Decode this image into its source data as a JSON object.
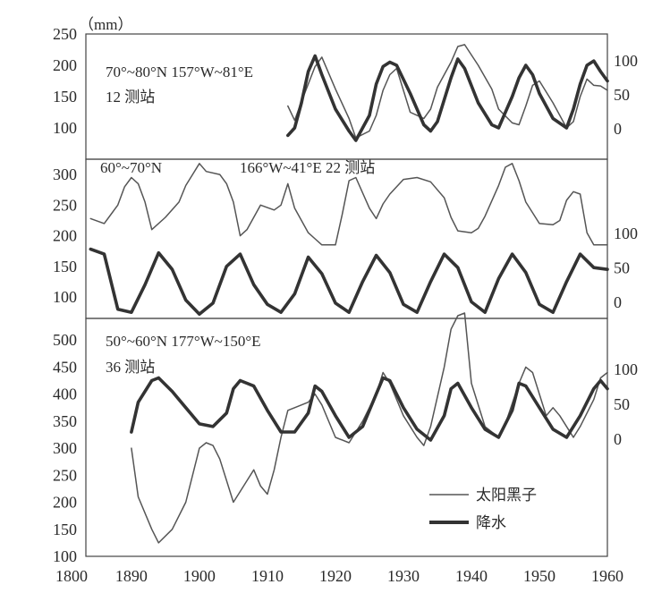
{
  "chart_data": {
    "type": "line",
    "unit_label": "（mm）",
    "x_ticks": [
      "1800",
      "1890",
      "1900",
      "1910",
      "1920",
      "1930",
      "1940",
      "1950",
      "1960"
    ],
    "legend": {
      "sunspot": "太阳黑子",
      "precip": "降水"
    },
    "panels": [
      {
        "title_line1": "70°~80°N 157°W~81°E",
        "title_line2": "12 测站",
        "left_ticks": [
          "250",
          "200",
          "150",
          "100"
        ],
        "left_range": [
          50,
          250
        ],
        "right_ticks": [
          "100",
          "50",
          "0"
        ],
        "right_range": [
          0,
          100
        ],
        "series": [
          {
            "key": "sunspot",
            "x": [
              1913,
              1914,
              1915,
              1916,
              1917,
              1918,
              1920,
              1922,
              1923,
              1925,
              1926,
              1927,
              1928,
              1929,
              1931,
              1933,
              1934,
              1935,
              1937,
              1938,
              1939,
              1941,
              1943,
              1944,
              1946,
              1947,
              1948,
              1949,
              1950,
              1952,
              1954,
              1955,
              1956,
              1957,
              1958,
              1959,
              1960
            ],
            "y": [
              135,
              112,
              142,
              170,
              198,
              213,
              162,
              115,
              84,
              95,
              120,
              160,
              185,
              195,
              125,
              115,
              130,
              165,
              205,
              230,
              233,
              200,
              162,
              130,
              108,
              105,
              135,
              168,
              175,
              140,
              100,
              110,
              150,
              178,
              168,
              167,
              160
            ]
          },
          {
            "key": "precip",
            "x": [
              1913,
              1914,
              1915,
              1916,
              1917,
              1918,
              1920,
              1922,
              1923,
              1925,
              1926,
              1927,
              1928,
              1929,
              1931,
              1933,
              1934,
              1935,
              1937,
              1938,
              1939,
              1941,
              1943,
              1944,
              1946,
              1947,
              1948,
              1949,
              1950,
              1952,
              1954,
              1955,
              1956,
              1957,
              1958,
              1959,
              1960
            ],
            "y": [
              88,
              100,
              140,
              190,
              215,
              185,
              130,
              95,
              80,
              120,
              170,
              198,
              205,
              200,
              155,
              105,
              95,
              110,
              180,
              210,
              195,
              140,
              105,
              100,
              150,
              180,
              200,
              185,
              155,
              115,
              100,
              130,
              170,
              200,
              207,
              190,
              175
            ]
          }
        ]
      },
      {
        "title_line1": "60°~70°N",
        "title_line2": "166°W~41°E  22 测站",
        "left_ticks": [
          "300",
          "250",
          "200",
          "150",
          "100"
        ],
        "left_range": [
          65,
          325
        ],
        "right_ticks": [
          "100",
          "50",
          "0"
        ],
        "right_range": [
          0,
          100
        ],
        "series": [
          {
            "key": "sunspot",
            "x": [
              1884,
              1886,
              1888,
              1889,
              1890,
              1891,
              1892,
              1893,
              1895,
              1897,
              1898,
              1899,
              1900,
              1901,
              1903,
              1904,
              1905,
              1906,
              1907,
              1909,
              1911,
              1912,
              1913,
              1914,
              1916,
              1917,
              1918,
              1920,
              1921,
              1922,
              1923,
              1925,
              1926,
              1927,
              1928,
              1930,
              1932,
              1934,
              1936,
              1937,
              1938,
              1940,
              1941,
              1942,
              1944,
              1945,
              1946,
              1947,
              1948,
              1950,
              1952,
              1953,
              1954,
              1955,
              1956,
              1957,
              1958,
              1960
            ],
            "y": [
              228,
              220,
              250,
              280,
              295,
              285,
              255,
              210,
              230,
              255,
              282,
              300,
              318,
              305,
              300,
              285,
              255,
              200,
              210,
              250,
              242,
              250,
              285,
              245,
              205,
              195,
              185,
              185,
              235,
              290,
              295,
              245,
              228,
              252,
              268,
              292,
              295,
              288,
              262,
              230,
              208,
              205,
              212,
              232,
              282,
              312,
              318,
              290,
              255,
              220,
              218,
              225,
              258,
              272,
              268,
              205,
              185,
              185
            ]
          },
          {
            "key": "precip",
            "x": [
              1884,
              1886,
              1888,
              1890,
              1892,
              1894,
              1896,
              1898,
              1900,
              1902,
              1904,
              1906,
              1908,
              1910,
              1912,
              1914,
              1916,
              1918,
              1920,
              1922,
              1924,
              1926,
              1928,
              1930,
              1932,
              1934,
              1936,
              1938,
              1940,
              1942,
              1944,
              1946,
              1948,
              1950,
              1952,
              1954,
              1956,
              1958,
              1960
            ],
            "y": [
              178,
              170,
              80,
              75,
              120,
              172,
              145,
              95,
              72,
              90,
              150,
              170,
              120,
              88,
              75,
              105,
              165,
              138,
              90,
              75,
              125,
              168,
              140,
              88,
              75,
              125,
              170,
              148,
              92,
              75,
              130,
              170,
              140,
              88,
              75,
              125,
              170,
              148,
              145
            ]
          }
        ]
      },
      {
        "title_line1": "50°~60°N 177°W~150°E",
        "title_line2": "36 测站",
        "left_ticks": [
          "500",
          "450",
          "400",
          "350",
          "300",
          "250",
          "200",
          "150",
          "100"
        ],
        "left_range": [
          100,
          540
        ],
        "right_ticks": [
          "100",
          "50",
          "0"
        ],
        "right_range": [
          0,
          100
        ],
        "series": [
          {
            "key": "sunspot",
            "x": [
              1890,
              1891,
              1893,
              1894,
              1896,
              1898,
              1900,
              1901,
              1902,
              1903,
              1905,
              1906,
              1907,
              1908,
              1909,
              1910,
              1911,
              1912,
              1913,
              1914,
              1916,
              1917,
              1918,
              1920,
              1922,
              1924,
              1926,
              1927,
              1928,
              1930,
              1932,
              1933,
              1934,
              1936,
              1937,
              1938,
              1939,
              1940,
              1942,
              1944,
              1945,
              1947,
              1948,
              1949,
              1951,
              1952,
              1953,
              1955,
              1956,
              1958,
              1959,
              1960
            ],
            "y": [
              300,
              210,
              150,
              125,
              150,
              200,
              300,
              310,
              305,
              280,
              200,
              220,
              240,
              260,
              230,
              215,
              260,
              320,
              370,
              375,
              385,
              400,
              380,
              320,
              310,
              350,
              400,
              440,
              420,
              360,
              320,
              305,
              340,
              450,
              520,
              545,
              550,
              420,
              340,
              320,
              345,
              420,
              450,
              440,
              360,
              375,
              360,
              320,
              340,
              390,
              430,
              440
            ]
          },
          {
            "key": "precip",
            "x": [
              1890,
              1891,
              1893,
              1894,
              1896,
              1898,
              1900,
              1902,
              1904,
              1905,
              1906,
              1907,
              1908,
              1910,
              1912,
              1914,
              1916,
              1917,
              1918,
              1920,
              1922,
              1924,
              1926,
              1927,
              1928,
              1930,
              1932,
              1934,
              1936,
              1937,
              1938,
              1940,
              1942,
              1944,
              1946,
              1947,
              1948,
              1950,
              1952,
              1954,
              1956,
              1958,
              1959,
              1960
            ],
            "y": [
              330,
              385,
              425,
              430,
              405,
              375,
              345,
              340,
              365,
              410,
              425,
              420,
              415,
              370,
              330,
              330,
              365,
              415,
              405,
              360,
              320,
              340,
              400,
              430,
              425,
              375,
              335,
              315,
              360,
              410,
              420,
              375,
              335,
              320,
              370,
              420,
              415,
              375,
              335,
              320,
              360,
              410,
              425,
              410
            ]
          }
        ]
      }
    ]
  }
}
